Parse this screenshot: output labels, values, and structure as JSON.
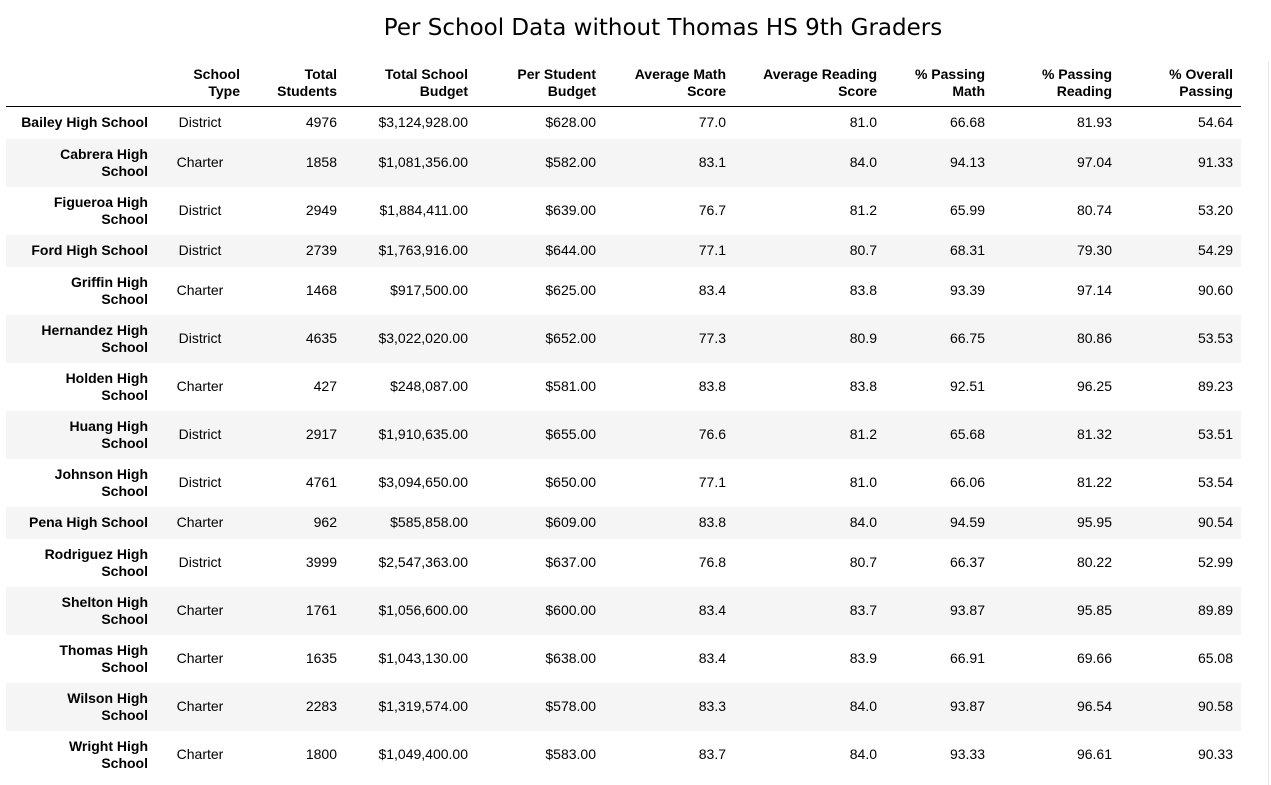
{
  "title": "Per School Data without Thomas HS 9th Graders",
  "columns": [
    {
      "line1": "",
      "line2": ""
    },
    {
      "line1": "School",
      "line2": "Type"
    },
    {
      "line1": "Total",
      "line2": "Students"
    },
    {
      "line1": "Total School",
      "line2": "Budget"
    },
    {
      "line1": "Per Student",
      "line2": "Budget"
    },
    {
      "line1": "Average Math",
      "line2": "Score"
    },
    {
      "line1": "Average Reading",
      "line2": "Score"
    },
    {
      "line1": "% Passing",
      "line2": "Math"
    },
    {
      "line1": "% Passing",
      "line2": "Reading"
    },
    {
      "line1": "% Overall",
      "line2": "Passing"
    }
  ],
  "rows": [
    {
      "name_line1": "Bailey High School",
      "name_line2": "",
      "type": "District",
      "students": "4976",
      "budget": "$3,124,928.00",
      "per_student": "$628.00",
      "math": "77.0",
      "reading": "81.0",
      "pass_math": "66.68",
      "pass_reading": "81.93",
      "overall": "54.64"
    },
    {
      "name_line1": "Cabrera High",
      "name_line2": "School",
      "type": "Charter",
      "students": "1858",
      "budget": "$1,081,356.00",
      "per_student": "$582.00",
      "math": "83.1",
      "reading": "84.0",
      "pass_math": "94.13",
      "pass_reading": "97.04",
      "overall": "91.33"
    },
    {
      "name_line1": "Figueroa High",
      "name_line2": "School",
      "type": "District",
      "students": "2949",
      "budget": "$1,884,411.00",
      "per_student": "$639.00",
      "math": "76.7",
      "reading": "81.2",
      "pass_math": "65.99",
      "pass_reading": "80.74",
      "overall": "53.20"
    },
    {
      "name_line1": "Ford High School",
      "name_line2": "",
      "type": "District",
      "students": "2739",
      "budget": "$1,763,916.00",
      "per_student": "$644.00",
      "math": "77.1",
      "reading": "80.7",
      "pass_math": "68.31",
      "pass_reading": "79.30",
      "overall": "54.29"
    },
    {
      "name_line1": "Griffin High",
      "name_line2": "School",
      "type": "Charter",
      "students": "1468",
      "budget": "$917,500.00",
      "per_student": "$625.00",
      "math": "83.4",
      "reading": "83.8",
      "pass_math": "93.39",
      "pass_reading": "97.14",
      "overall": "90.60"
    },
    {
      "name_line1": "Hernandez High",
      "name_line2": "School",
      "type": "District",
      "students": "4635",
      "budget": "$3,022,020.00",
      "per_student": "$652.00",
      "math": "77.3",
      "reading": "80.9",
      "pass_math": "66.75",
      "pass_reading": "80.86",
      "overall": "53.53"
    },
    {
      "name_line1": "Holden High",
      "name_line2": "School",
      "type": "Charter",
      "students": "427",
      "budget": "$248,087.00",
      "per_student": "$581.00",
      "math": "83.8",
      "reading": "83.8",
      "pass_math": "92.51",
      "pass_reading": "96.25",
      "overall": "89.23"
    },
    {
      "name_line1": "Huang High",
      "name_line2": "School",
      "type": "District",
      "students": "2917",
      "budget": "$1,910,635.00",
      "per_student": "$655.00",
      "math": "76.6",
      "reading": "81.2",
      "pass_math": "65.68",
      "pass_reading": "81.32",
      "overall": "53.51"
    },
    {
      "name_line1": "Johnson High",
      "name_line2": "School",
      "type": "District",
      "students": "4761",
      "budget": "$3,094,650.00",
      "per_student": "$650.00",
      "math": "77.1",
      "reading": "81.0",
      "pass_math": "66.06",
      "pass_reading": "81.22",
      "overall": "53.54"
    },
    {
      "name_line1": "Pena High School",
      "name_line2": "",
      "type": "Charter",
      "students": "962",
      "budget": "$585,858.00",
      "per_student": "$609.00",
      "math": "83.8",
      "reading": "84.0",
      "pass_math": "94.59",
      "pass_reading": "95.95",
      "overall": "90.54"
    },
    {
      "name_line1": "Rodriguez High",
      "name_line2": "School",
      "type": "District",
      "students": "3999",
      "budget": "$2,547,363.00",
      "per_student": "$637.00",
      "math": "76.8",
      "reading": "80.7",
      "pass_math": "66.37",
      "pass_reading": "80.22",
      "overall": "52.99"
    },
    {
      "name_line1": "Shelton High",
      "name_line2": "School",
      "type": "Charter",
      "students": "1761",
      "budget": "$1,056,600.00",
      "per_student": "$600.00",
      "math": "83.4",
      "reading": "83.7",
      "pass_math": "93.87",
      "pass_reading": "95.85",
      "overall": "89.89"
    },
    {
      "name_line1": "Thomas High",
      "name_line2": "School",
      "type": "Charter",
      "students": "1635",
      "budget": "$1,043,130.00",
      "per_student": "$638.00",
      "math": "83.4",
      "reading": "83.9",
      "pass_math": "66.91",
      "pass_reading": "69.66",
      "overall": "65.08"
    },
    {
      "name_line1": "Wilson High",
      "name_line2": "School",
      "type": "Charter",
      "students": "2283",
      "budget": "$1,319,574.00",
      "per_student": "$578.00",
      "math": "83.3",
      "reading": "84.0",
      "pass_math": "93.87",
      "pass_reading": "96.54",
      "overall": "90.58"
    },
    {
      "name_line1": "Wright High",
      "name_line2": "School",
      "type": "Charter",
      "students": "1800",
      "budget": "$1,049,400.00",
      "per_student": "$583.00",
      "math": "83.7",
      "reading": "84.0",
      "pass_math": "93.33",
      "pass_reading": "96.61",
      "overall": "90.33"
    }
  ]
}
